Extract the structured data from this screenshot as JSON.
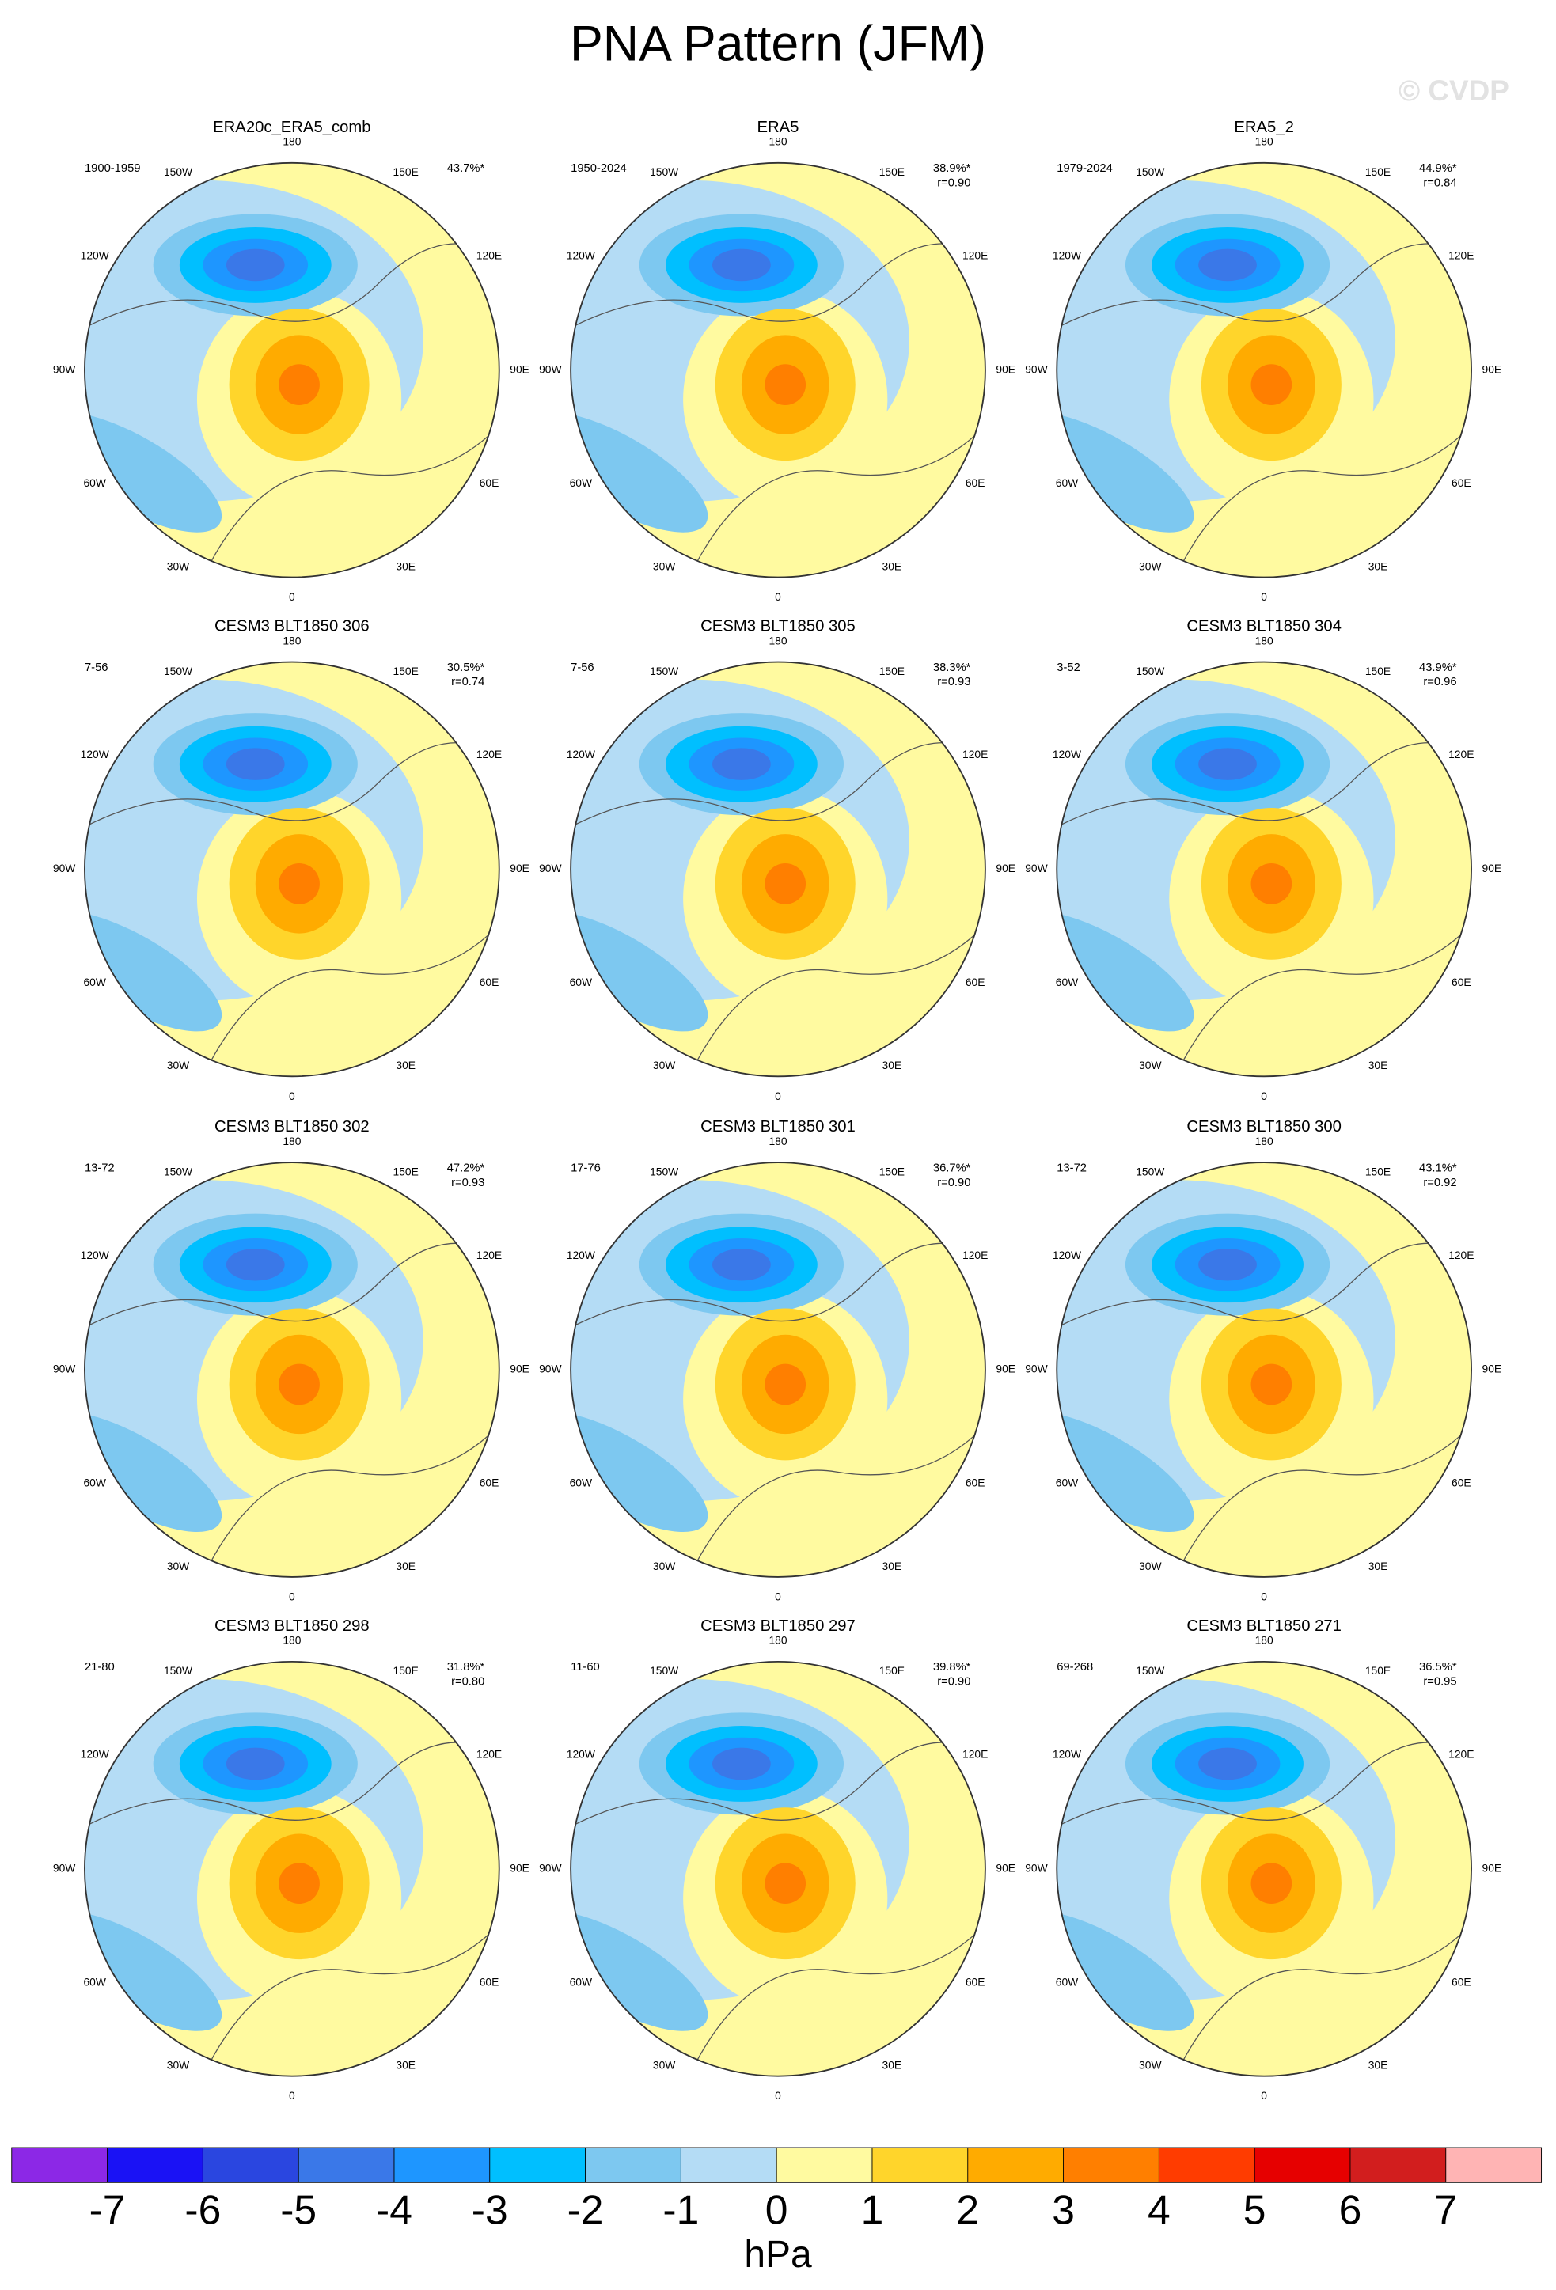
{
  "title": "PNA Pattern (JFM)",
  "watermark": "© CVDP",
  "lon_labels": [
    "180",
    "150E",
    "120E",
    "90E",
    "60E",
    "30E",
    "0",
    "30W",
    "60W",
    "90W",
    "120W",
    "150W"
  ],
  "panels": [
    {
      "title": "ERA20c_ERA5_comb",
      "period": "1900-1959",
      "pct": "43.7%*"
    },
    {
      "title": "ERA5",
      "period": "1950-2024",
      "pct": "38.9%*",
      "r": "r=0.90"
    },
    {
      "title": "ERA5_2",
      "period": "1979-2024",
      "pct": "44.9%*",
      "r": "r=0.84"
    },
    {
      "title": "CESM3 BLT1850 306",
      "period": "7-56",
      "pct": "30.5%*",
      "r": "r=0.74"
    },
    {
      "title": "CESM3 BLT1850 305",
      "period": "7-56",
      "pct": "38.3%*",
      "r": "r=0.93"
    },
    {
      "title": "CESM3 BLT1850 304",
      "period": "3-52",
      "pct": "43.9%*",
      "r": "r=0.96"
    },
    {
      "title": "CESM3 BLT1850 302",
      "period": "13-72",
      "pct": "47.2%*",
      "r": "r=0.93"
    },
    {
      "title": "CESM3 BLT1850 301",
      "period": "17-76",
      "pct": "36.7%*",
      "r": "r=0.90"
    },
    {
      "title": "CESM3 BLT1850 300",
      "period": "13-72",
      "pct": "43.1%*",
      "r": "r=0.92"
    },
    {
      "title": "CESM3 BLT1850 298",
      "period": "21-80",
      "pct": "31.8%*",
      "r": "r=0.80"
    },
    {
      "title": "CESM3 BLT1850 297",
      "period": "11-60",
      "pct": "39.8%*",
      "r": "r=0.90"
    },
    {
      "title": "CESM3 BLT1850 271",
      "period": "69-268",
      "pct": "36.5%*",
      "r": "r=0.95"
    }
  ],
  "colorbar": {
    "ticks": [
      -7,
      -6,
      -5,
      -4,
      -3,
      -2,
      -1,
      0,
      1,
      2,
      3,
      4,
      5,
      6,
      7
    ],
    "colors": [
      "#8c28e6",
      "#1a12f5",
      "#2a46e0",
      "#3a78e8",
      "#1e96ff",
      "#00bfff",
      "#7dc8f0",
      "#b4dcf5",
      "#fffaa0",
      "#ffd52b",
      "#ffab00",
      "#ff7f00",
      "#ff3c00",
      "#e60000",
      "#d21e1e",
      "#ffb4b4"
    ],
    "label": "hPa"
  }
}
